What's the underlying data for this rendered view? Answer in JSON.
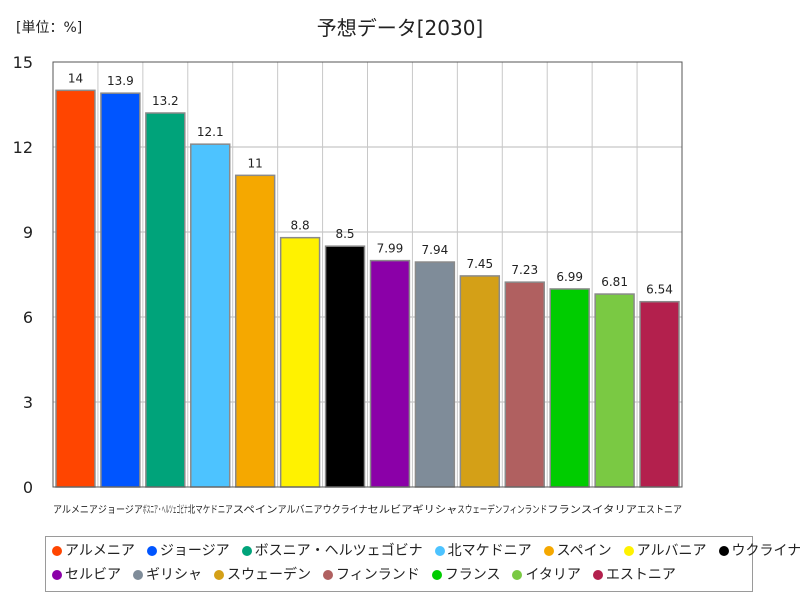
{
  "unit_label": "[単位：%]",
  "chart_data": {
    "type": "bar",
    "title": "予想データ[2030]",
    "xlabel": "",
    "ylabel": "",
    "ylim": [
      0,
      15
    ],
    "yticks": [
      "0",
      "3",
      "6",
      "9",
      "12",
      "15"
    ],
    "grid": true,
    "legend_position": "bottom",
    "categories": [
      "アルメニア",
      "ジョージア",
      "ボスニア・ヘルツェゴビナ",
      "北マケドニア",
      "スペイン",
      "アルバニア",
      "ウクライナ",
      "セルビア",
      "ギリシャ",
      "スウェーデン",
      "フィンランド",
      "フランス",
      "イタリア",
      "エストニア"
    ],
    "values": [
      14,
      13.9,
      13.2,
      12.1,
      11,
      8.8,
      8.5,
      7.99,
      7.94,
      7.45,
      7.23,
      6.99,
      6.81,
      6.54
    ],
    "value_labels": [
      "14",
      "13.9",
      "13.2",
      "12.1",
      "11",
      "8.8",
      "8.5",
      "7.99",
      "7.94",
      "7.45",
      "7.23",
      "6.99",
      "6.81",
      "6.54"
    ],
    "colors": [
      "#ff4500",
      "#0055ff",
      "#00a37a",
      "#4dc3ff",
      "#f5a800",
      "#fff200",
      "#000000",
      "#8b00a8",
      "#7f8c99",
      "#d4a017",
      "#b06060",
      "#00cc00",
      "#7ac943",
      "#b3204d"
    ]
  }
}
